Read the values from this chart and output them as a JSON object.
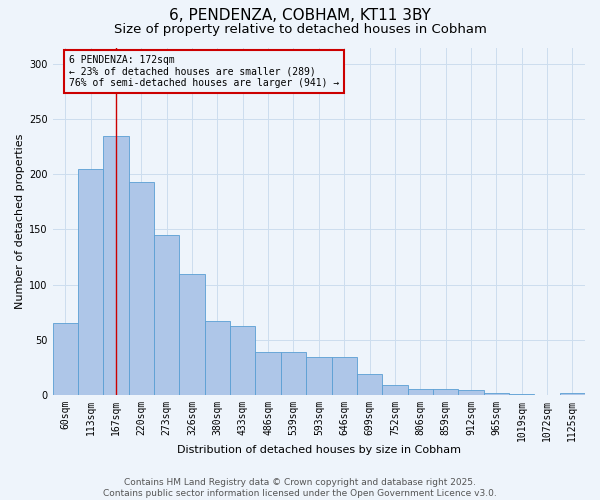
{
  "title1": "6, PENDENZA, COBHAM, KT11 3BY",
  "title2": "Size of property relative to detached houses in Cobham",
  "xlabel": "Distribution of detached houses by size in Cobham",
  "ylabel": "Number of detached properties",
  "categories": [
    "60sqm",
    "113sqm",
    "167sqm",
    "220sqm",
    "273sqm",
    "326sqm",
    "380sqm",
    "433sqm",
    "486sqm",
    "539sqm",
    "593sqm",
    "646sqm",
    "699sqm",
    "752sqm",
    "806sqm",
    "859sqm",
    "912sqm",
    "965sqm",
    "1019sqm",
    "1072sqm",
    "1125sqm"
  ],
  "values": [
    65,
    205,
    235,
    193,
    145,
    110,
    67,
    62,
    39,
    39,
    34,
    34,
    19,
    9,
    5,
    5,
    4,
    2,
    1,
    0,
    2
  ],
  "bar_color": "#aec6e8",
  "bar_edge_color": "#5a9fd4",
  "grid_color": "#ccddee",
  "bg_color": "#eef4fb",
  "red_line_index": 2,
  "red_line_color": "#cc0000",
  "annotation_text": "6 PENDENZA: 172sqm\n← 23% of detached houses are smaller (289)\n76% of semi-detached houses are larger (941) →",
  "annotation_box_color": "#cc0000",
  "ylim": [
    0,
    315
  ],
  "yticks": [
    0,
    50,
    100,
    150,
    200,
    250,
    300
  ],
  "footnote": "Contains HM Land Registry data © Crown copyright and database right 2025.\nContains public sector information licensed under the Open Government Licence v3.0.",
  "title1_fontsize": 11,
  "title2_fontsize": 9.5,
  "axis_label_fontsize": 8,
  "tick_fontsize": 7,
  "annotation_fontsize": 7,
  "footnote_fontsize": 6.5
}
